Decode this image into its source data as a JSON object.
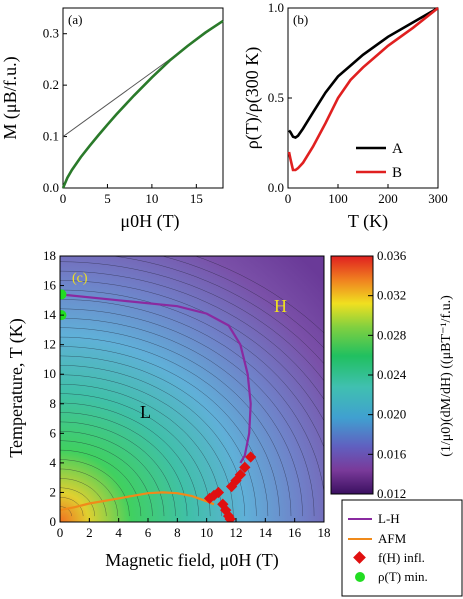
{
  "chart_data": [
    {
      "panel_label": "(a)",
      "type": "line",
      "xlabel": "μ0H (T)",
      "ylabel": "M (μB/f.u.)",
      "xlim": [
        0,
        18
      ],
      "ylim": [
        0,
        0.35
      ],
      "xticks": [
        "0",
        "5",
        "10",
        "15"
      ],
      "yticks": [
        "0.0",
        "0.1",
        "0.2",
        "0.3"
      ],
      "series": [
        {
          "color": "#2a7a2a",
          "x": [
            0,
            0.5,
            1,
            2,
            3,
            4,
            5,
            6,
            8,
            10,
            12,
            14,
            16,
            18
          ],
          "y": [
            0,
            0.02,
            0.035,
            0.06,
            0.082,
            0.103,
            0.123,
            0.143,
            0.18,
            0.215,
            0.248,
            0.276,
            0.302,
            0.325
          ]
        },
        {
          "color": "#555555",
          "x": [
            0,
            18
          ],
          "y": [
            0.1,
            0.325
          ]
        }
      ]
    },
    {
      "panel_label": "(b)",
      "type": "line",
      "xlabel": "T (K)",
      "ylabel": "ρ(T)/ρ(300 K)",
      "xlim": [
        0,
        300
      ],
      "ylim": [
        0,
        1.0
      ],
      "xticks": [
        "0",
        "100",
        "200",
        "300"
      ],
      "yticks": [
        "0.0",
        "0.5",
        "1.0"
      ],
      "legend": "bottom-right",
      "series": [
        {
          "name": "A",
          "color": "#000000",
          "x": [
            2,
            5,
            10,
            15,
            20,
            30,
            50,
            75,
            100,
            125,
            150,
            200,
            250,
            300
          ],
          "y": [
            0.32,
            0.31,
            0.285,
            0.28,
            0.29,
            0.33,
            0.42,
            0.53,
            0.62,
            0.68,
            0.74,
            0.84,
            0.92,
            1.0
          ]
        },
        {
          "name": "B",
          "color": "#e02020",
          "x": [
            2,
            5,
            10,
            15,
            20,
            30,
            50,
            75,
            100,
            125,
            150,
            200,
            250,
            300
          ],
          "y": [
            0.2,
            0.16,
            0.1,
            0.1,
            0.11,
            0.14,
            0.23,
            0.36,
            0.5,
            0.6,
            0.67,
            0.79,
            0.89,
            1.0
          ]
        }
      ]
    },
    {
      "panel_label": "(c)",
      "type": "heatmap",
      "xlabel": "Magnetic field, μ0H (T)",
      "ylabel": "Temperature, T (K)",
      "xlim": [
        0,
        18
      ],
      "ylim": [
        0,
        18
      ],
      "xticks": [
        "0",
        "2",
        "4",
        "6",
        "8",
        "10",
        "12",
        "14",
        "16",
        "18"
      ],
      "yticks": [
        "0",
        "2",
        "4",
        "6",
        "8",
        "10",
        "12",
        "14",
        "16",
        "18"
      ],
      "region_labels": [
        "L",
        "H"
      ],
      "colorbar": {
        "label": "(1/μ0)(dM/dH) ((μBT⁻¹/f.u.)",
        "range": [
          0.012,
          0.036
        ],
        "ticks": [
          "0.012",
          "0.016",
          "0.020",
          "0.024",
          "0.028",
          "0.032",
          "0.036"
        ]
      },
      "series": [
        {
          "name": "L-H",
          "color": "#8a2aa0",
          "x": [
            0,
            4,
            8,
            10,
            11.5,
            12.3,
            12.8,
            13.0,
            12.9,
            12.6,
            12.3
          ],
          "y": [
            15.4,
            15.0,
            14.6,
            14.1,
            13.3,
            12.0,
            10.0,
            8.0,
            6.0,
            4.5,
            4.0
          ]
        },
        {
          "name": "AFM",
          "color": "#f08a1a",
          "x": [
            0,
            1,
            2,
            4,
            6,
            7,
            8,
            9,
            10,
            10.5
          ],
          "y": [
            0.8,
            1.0,
            1.25,
            1.6,
            1.95,
            2.0,
            1.95,
            1.75,
            1.4,
            1.2
          ]
        },
        {
          "name": "f(H) infl.",
          "color": "#e01010",
          "x": [
            10.2,
            10.5,
            10.8,
            11.1,
            11.3,
            11.5,
            11.6,
            11.7,
            12.0,
            12.3,
            12.6,
            13.0
          ],
          "y": [
            1.6,
            1.8,
            2.0,
            1.2,
            0.8,
            0.4,
            0.2,
            2.4,
            2.8,
            3.2,
            3.7,
            4.4
          ]
        },
        {
          "name": "ρ(T) min.",
          "color": "#22dd22",
          "x": [
            0.1,
            0.1
          ],
          "y": [
            15.4,
            14.0
          ]
        }
      ]
    }
  ]
}
